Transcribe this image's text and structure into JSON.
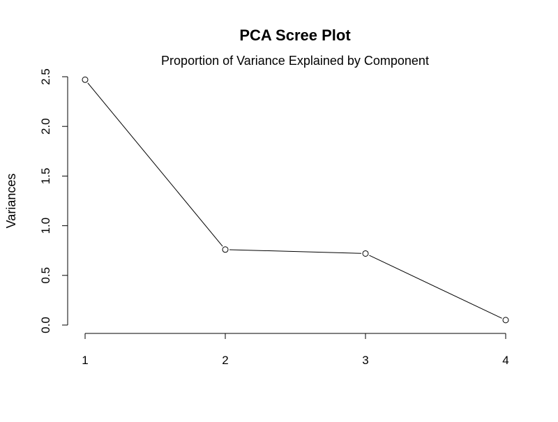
{
  "chart_data": {
    "type": "line",
    "title": "PCA Scree Plot",
    "subtitle": "Proportion of Variance Explained by Component",
    "xlabel": "",
    "ylabel": "Variances",
    "x": [
      1,
      2,
      3,
      4
    ],
    "x_tick_labels": [
      "1",
      "2",
      "3",
      "4"
    ],
    "y_ticks": [
      0.0,
      0.5,
      1.0,
      1.5,
      2.0,
      2.5
    ],
    "y_tick_labels": [
      "0.0",
      "0.5",
      "1.0",
      "1.5",
      "2.0",
      "2.5"
    ],
    "ylim": [
      0.0,
      2.5
    ],
    "series": [
      {
        "values": [
          2.47,
          0.76,
          0.72,
          0.05
        ]
      }
    ],
    "grid": false,
    "legend": "none",
    "colors": {
      "line": "#000000",
      "point_fill": "#ffffff",
      "axis": "#000000"
    }
  }
}
